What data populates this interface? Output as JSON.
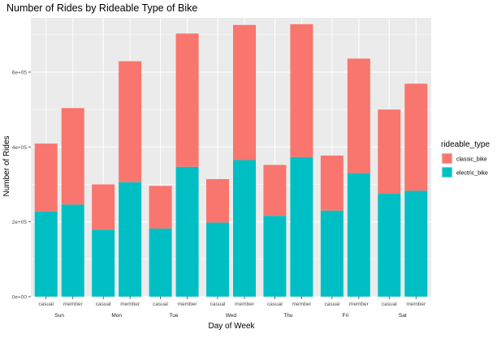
{
  "chart_data": {
    "type": "bar",
    "stacked": true,
    "title": "Number of Rides by Rideable Type of Bike",
    "xlabel": "Day of Week",
    "ylabel": "Number of Rides",
    "days": [
      "Sun",
      "Mon",
      "Tue",
      "Wed",
      "Thu",
      "Fri",
      "Sat"
    ],
    "rider_types": [
      "casual",
      "member"
    ],
    "categories": [
      "Sun casual",
      "Sun member",
      "Mon casual",
      "Mon member",
      "Tue casual",
      "Tue member",
      "Wed casual",
      "Wed member",
      "Thu casual",
      "Thu member",
      "Fri casual",
      "Fri member",
      "Sat casual",
      "Sat member"
    ],
    "series": [
      {
        "name": "electric_bike",
        "color": "#00BFC4",
        "values": [
          228000,
          246000,
          179000,
          306000,
          182000,
          347000,
          198000,
          365000,
          216000,
          373000,
          230000,
          330000,
          275000,
          283000
        ]
      },
      {
        "name": "classic_bike",
        "color": "#F8766D",
        "values": [
          181000,
          258000,
          121000,
          323000,
          114000,
          356000,
          116000,
          361000,
          136000,
          355000,
          147000,
          306000,
          225000,
          286000
        ]
      }
    ],
    "stack_order": [
      "electric_bike",
      "classic_bike"
    ],
    "legend": {
      "title": "rideable_type",
      "entries": [
        "classic_bike",
        "electric_bike"
      ],
      "position": "right"
    },
    "y_ticks": [
      {
        "value": 0,
        "label": "0e+00"
      },
      {
        "value": 200000,
        "label": "2e+05"
      },
      {
        "value": 400000,
        "label": "4e+05"
      },
      {
        "value": 600000,
        "label": "6e+05"
      }
    ],
    "ylim": [
      0,
      745000
    ],
    "grid": true,
    "panel_color": "#EBEBEB"
  }
}
